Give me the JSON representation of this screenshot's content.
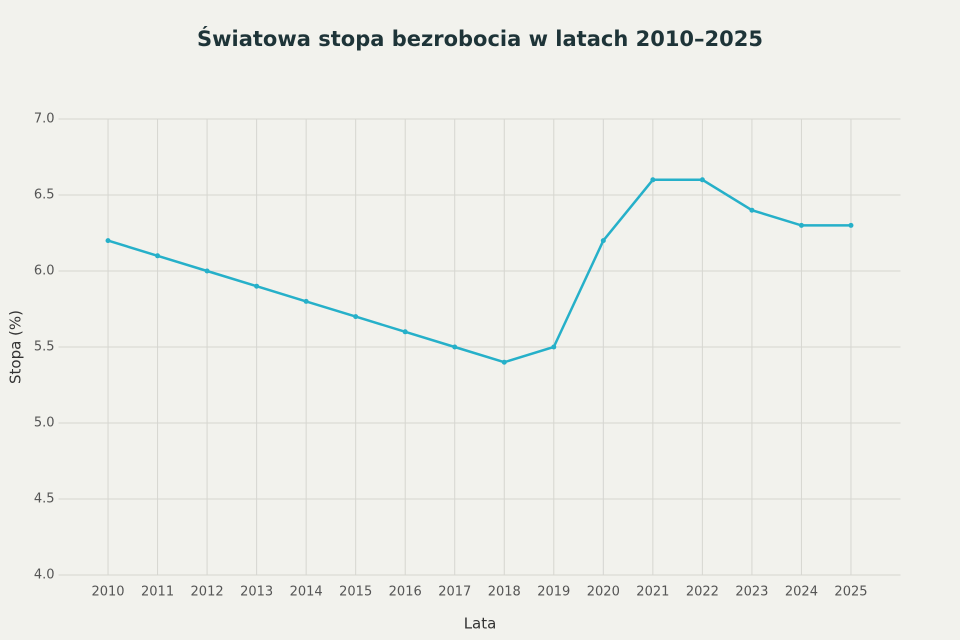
{
  "chart_data": {
    "type": "line",
    "title": "Światowa stopa bezrobocia w latach 2010–2025",
    "x_label": "Lata",
    "y_label": "Stopa (%)",
    "x": [
      2010,
      2011,
      2012,
      2013,
      2014,
      2015,
      2016,
      2017,
      2018,
      2019,
      2020,
      2021,
      2022,
      2023,
      2024,
      2025
    ],
    "series": [
      {
        "name": "Stopa bezrobocia",
        "color": "#26b0c9",
        "values": [
          6.2,
          6.1,
          6.0,
          5.9,
          5.8,
          5.7,
          5.6,
          5.5,
          5.4,
          5.5,
          6.2,
          6.6,
          6.6,
          6.4,
          6.3,
          6.3
        ]
      }
    ],
    "xlim": [
      2009,
      2026
    ],
    "xticks": [
      2010,
      2011,
      2012,
      2013,
      2014,
      2015,
      2016,
      2017,
      2018,
      2019,
      2020,
      2021,
      2022,
      2023,
      2024,
      2025
    ],
    "ylim": [
      4,
      7
    ],
    "yticks": [
      {
        "value": 4,
        "label": "4.0"
      },
      {
        "value": 4.5,
        "label": "4.5"
      },
      {
        "value": 5,
        "label": "5.0"
      },
      {
        "value": 5.5,
        "label": "5.5"
      },
      {
        "value": 6,
        "label": "6.0"
      },
      {
        "value": 6.5,
        "label": "6.5"
      },
      {
        "value": 7,
        "label": "7.0"
      }
    ],
    "grid": true
  }
}
